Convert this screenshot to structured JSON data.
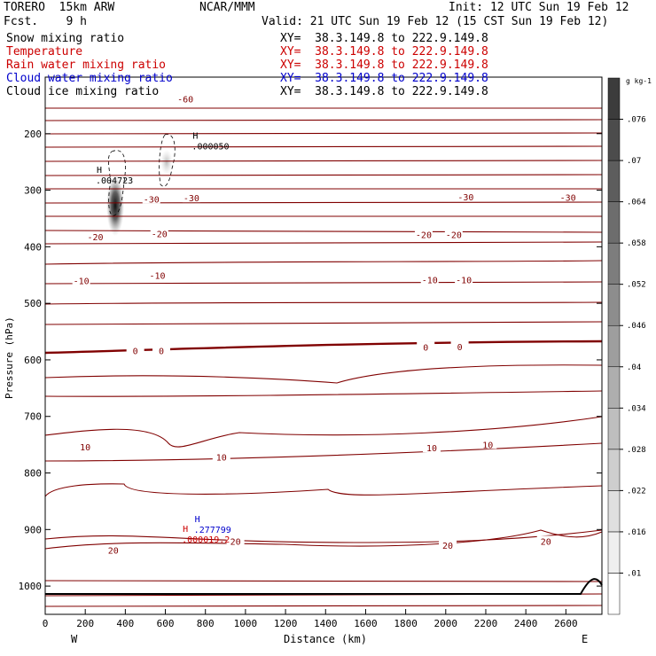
{
  "header": {
    "model": "TORERO  15km ARW",
    "institution": "NCAR/MMM",
    "init": "Init: 12 UTC Sun 19 Feb 12",
    "fcst": "Fcst.    9 h",
    "valid": "Valid: 21 UTC Sun 19 Feb 12 (15 CST Sun 19 Feb 12)"
  },
  "fields": [
    {
      "label": "Snow mixing ratio",
      "color": "#000000",
      "xy": "XY=  38.3.149.8 to 222.9.149.8"
    },
    {
      "label": "Temperature",
      "color": "#cc0000",
      "xy": "XY=  38.3.149.8 to 222.9.149.8"
    },
    {
      "label": "Rain water mixing ratio",
      "color": "#cc0000",
      "xy": "XY=  38.3.149.8 to 222.9.149.8"
    },
    {
      "label": "Cloud water mixing ratio",
      "color": "#0000cc",
      "xy": "XY=  38.3.149.8 to 222.9.149.8"
    },
    {
      "label": "Cloud ice mixing ratio",
      "color": "#000000",
      "xy": "XY=  38.3.149.8 to 222.9.149.8"
    }
  ],
  "colors": {
    "temperature": "#800000",
    "snow_shade": "#444444",
    "cloud_water": "#0000cc",
    "rain_water": "#cc0000"
  },
  "chart_data": {
    "type": "contour",
    "xlabel": "Distance (km)",
    "ylabel": "Pressure (hPa)",
    "xlim": [
      0,
      2780
    ],
    "ylim": [
      1050,
      100
    ],
    "x_ticks": [
      0,
      200,
      400,
      600,
      800,
      1000,
      1200,
      1400,
      1600,
      1800,
      2000,
      2200,
      2400,
      2600
    ],
    "y_ticks": [
      200,
      300,
      400,
      500,
      600,
      700,
      800,
      900,
      1000
    ],
    "x_end_labels": {
      "left": "W",
      "right": "E"
    },
    "colorbar": {
      "unit": "g kg-1",
      "ticks": [
        ".01",
        ".016",
        ".022",
        ".028",
        ".034",
        ".04",
        ".046",
        ".052",
        ".058",
        ".064",
        ".07",
        ".076"
      ]
    },
    "temperature_labels": [
      {
        "text": "-60",
        "x": 700,
        "p": 140
      },
      {
        "text": "-30",
        "x": 530,
        "p": 317
      },
      {
        "text": "-30",
        "x": 730,
        "p": 315
      },
      {
        "text": "-30",
        "x": 2100,
        "p": 313
      },
      {
        "text": "-30",
        "x": 2610,
        "p": 314
      },
      {
        "text": "-20",
        "x": 250,
        "p": 384
      },
      {
        "text": "-20",
        "x": 570,
        "p": 378
      },
      {
        "text": "-20",
        "x": 1890,
        "p": 380
      },
      {
        "text": "-20",
        "x": 2040,
        "p": 380
      },
      {
        "text": "-10",
        "x": 180,
        "p": 461
      },
      {
        "text": "-10",
        "x": 560,
        "p": 452
      },
      {
        "text": "-10",
        "x": 1920,
        "p": 460
      },
      {
        "text": "-10",
        "x": 2090,
        "p": 460
      },
      {
        "text": "0",
        "x": 450,
        "p": 585
      },
      {
        "text": "0",
        "x": 580,
        "p": 585
      },
      {
        "text": "0",
        "x": 1900,
        "p": 579
      },
      {
        "text": "0",
        "x": 2070,
        "p": 578
      },
      {
        "text": "10",
        "x": 200,
        "p": 755
      },
      {
        "text": "10",
        "x": 880,
        "p": 773
      },
      {
        "text": "10",
        "x": 1930,
        "p": 757
      },
      {
        "text": "10",
        "x": 2210,
        "p": 751
      },
      {
        "text": "20",
        "x": 340,
        "p": 938
      },
      {
        "text": "20",
        "x": 950,
        "p": 922
      },
      {
        "text": "20",
        "x": 2010,
        "p": 929
      },
      {
        "text": "20",
        "x": 2500,
        "p": 922
      }
    ],
    "maxima": [
      {
        "marker": "H",
        "value": ".000050",
        "field": "cloud ice",
        "x": 750,
        "p": 225
      },
      {
        "marker": "H",
        "value": ".004723",
        "field": "snow",
        "x": 270,
        "p": 285
      },
      {
        "marker": "H",
        "value": ".277799",
        "field": "cloud water",
        "x": 760,
        "p": 903
      },
      {
        "marker": "H",
        "value": ".000019.2",
        "field": "rain water",
        "x": 700,
        "p": 920
      }
    ]
  }
}
